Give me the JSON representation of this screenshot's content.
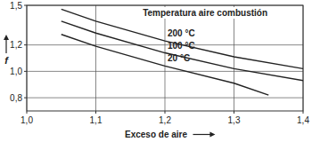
{
  "chart_data": {
    "type": "line",
    "title": "Temperatura aire combustión",
    "x_label": "Exceso de aire",
    "y_label": "f",
    "series": [
      {
        "name": "200 °C",
        "color": "#222222",
        "x": [
          1.05,
          1.1,
          1.2,
          1.3,
          1.4
        ],
        "values": [
          1.47,
          1.38,
          1.23,
          1.11,
          1.02
        ]
      },
      {
        "name": "100 °C",
        "color": "#222222",
        "x": [
          1.05,
          1.1,
          1.2,
          1.3,
          1.4
        ],
        "values": [
          1.38,
          1.29,
          1.14,
          1.02,
          0.93
        ]
      },
      {
        "name": "20 °C",
        "color": "#222222",
        "x": [
          1.05,
          1.1,
          1.2,
          1.3,
          1.35
        ],
        "values": [
          1.28,
          1.19,
          1.04,
          0.91,
          0.82
        ]
      }
    ],
    "xlim": [
      1.0,
      1.4
    ],
    "xticks": [
      {
        "value": 1.0,
        "label": "1,0"
      },
      {
        "value": 1.1,
        "label": "1,1"
      },
      {
        "value": 1.2,
        "label": "1,2"
      },
      {
        "value": 1.3,
        "label": "1,3"
      },
      {
        "value": 1.4,
        "label": "1,4"
      }
    ],
    "ylim": [
      0.7,
      1.5
    ],
    "yticks": [
      {
        "value": 0.8,
        "label": "0,8"
      },
      {
        "value": 1.0,
        "label": "1,0"
      },
      {
        "value": 1.2,
        "label": "1,2"
      },
      {
        "value": 1.5,
        "label": "1,5"
      }
    ],
    "grid": true
  }
}
